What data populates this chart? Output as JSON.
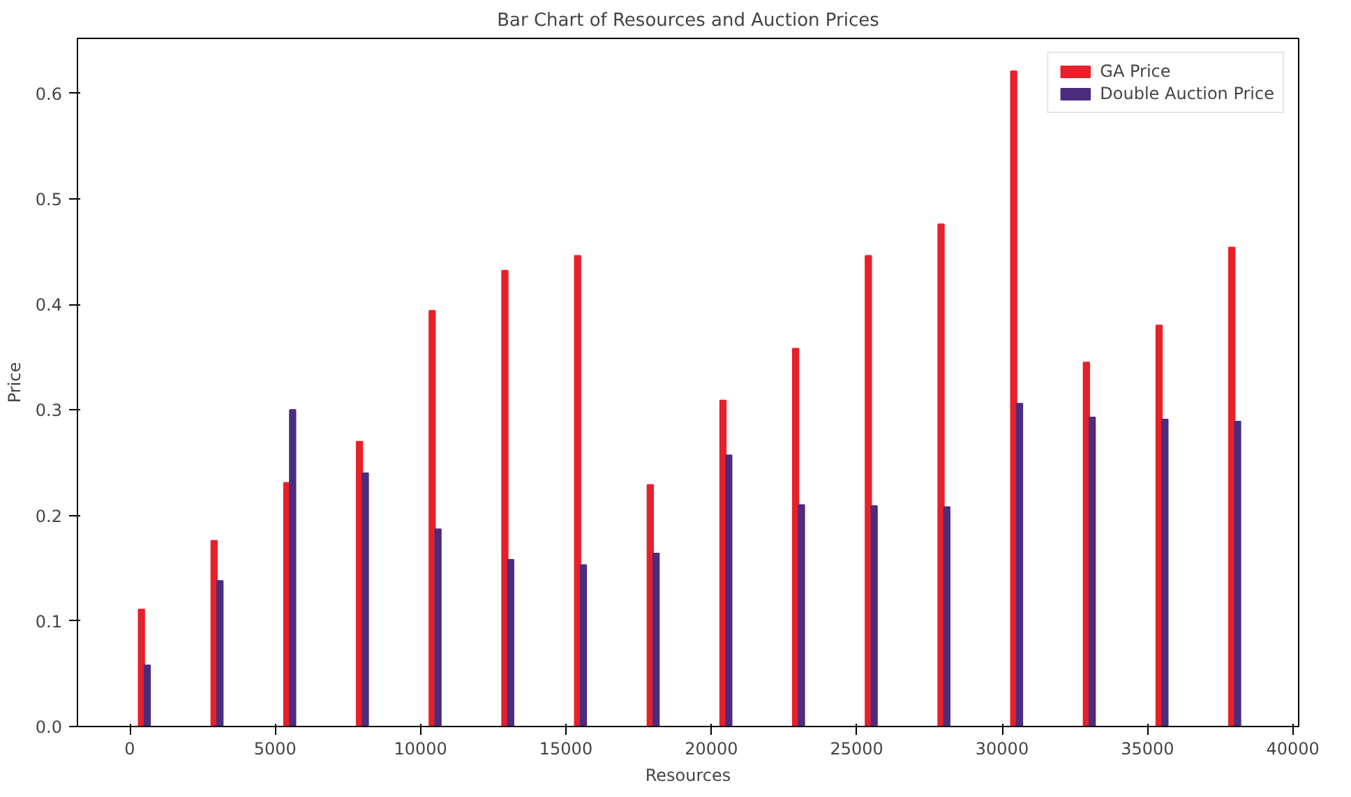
{
  "chart_data": {
    "type": "bar",
    "title": "Bar Chart of Resources and Auction Prices",
    "xlabel": "Resources",
    "ylabel": "Price",
    "series": [
      {
        "name": "GA Price",
        "color": "#e8202a",
        "x": [
          400,
          2900,
          5400,
          7900,
          10400,
          12900,
          15400,
          17900,
          20400,
          22900,
          25400,
          27900,
          30400,
          32900,
          35400,
          37900
        ],
        "values": [
          0.111,
          0.176,
          0.231,
          0.27,
          0.394,
          0.432,
          0.446,
          0.229,
          0.309,
          0.358,
          0.446,
          0.476,
          0.621,
          0.345,
          0.38,
          0.454
        ]
      },
      {
        "name": "Double Auction Price",
        "color": "#4b2d7f",
        "x": [
          600,
          3100,
          5600,
          8100,
          10600,
          13100,
          15600,
          18100,
          20600,
          23100,
          25600,
          28100,
          30600,
          33100,
          35600,
          38100
        ],
        "values": [
          0.058,
          0.138,
          0.3,
          0.24,
          0.187,
          0.158,
          0.153,
          0.164,
          0.257,
          0.21,
          0.209,
          0.208,
          0.306,
          0.293,
          0.291,
          0.289
        ]
      }
    ],
    "xlim": [
      -1800,
      40200
    ],
    "ylim": [
      0,
      0.652
    ],
    "xticks": [
      0,
      5000,
      10000,
      15000,
      20000,
      25000,
      30000,
      35000,
      40000
    ],
    "yticks": [
      {
        "value": 0,
        "label": "0.0"
      },
      0.1,
      0.2,
      0.3,
      0.4,
      0.5,
      0.6
    ],
    "legend": "top right",
    "grid": false
  }
}
